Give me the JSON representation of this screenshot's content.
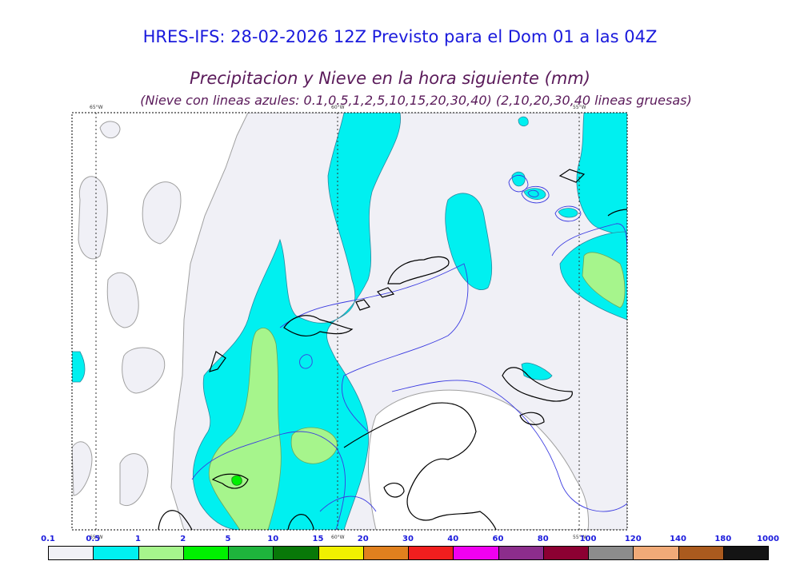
{
  "header": {
    "title": "HRES-IFS: 28-02-2026 12Z Previsto para el Dom 01 a las 04Z",
    "subtitle": "Precipitacion y Nieve en la hora siguiente (mm)",
    "subtitle2": "(Nieve con lineas azules: 0.1,0.5,1,2,5,10,15,20,30,40)  (2,10,20,30,40 lineas gruesas)"
  },
  "map": {
    "longitude_labels": [
      "65°W",
      "60°W",
      "55°W"
    ]
  },
  "colorbar": {
    "labels": [
      "0.1",
      "0.5",
      "1",
      "2",
      "5",
      "10",
      "15",
      "20",
      "30",
      "40",
      "60",
      "80",
      "100",
      "120",
      "140",
      "180",
      "1000"
    ],
    "colors": [
      "#f0f0f6",
      "#00f0f0",
      "#a6f58c",
      "#00f000",
      "#1eb43c",
      "#087808",
      "#f0f000",
      "#e0801e",
      "#f01e1e",
      "#f000f0",
      "#8c2d8c",
      "#8c0032",
      "#8c8c8c",
      "#f0aa78",
      "#aa5a1e",
      "#141414"
    ]
  }
}
